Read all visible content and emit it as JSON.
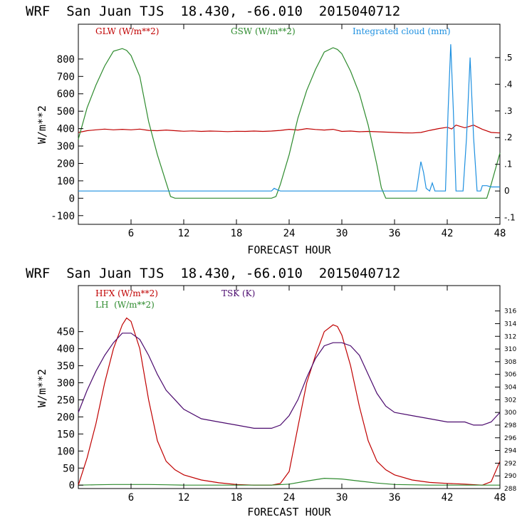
{
  "chart_data": [
    {
      "type": "line",
      "header": "WRF  San Juan TJS  18.430, -66.010  2015040712",
      "xlabel": "FORECAST HOUR",
      "ylabel": "W/m**2",
      "xlim": [
        0,
        48
      ],
      "ylim": [
        -150,
        1000
      ],
      "y2lim": [
        -0.125,
        0.625
      ],
      "x_ticks": [
        6,
        12,
        18,
        24,
        30,
        36,
        42,
        48
      ],
      "x_tick_labels": [
        "6",
        "12",
        "18",
        "24",
        "30",
        "36",
        "42",
        "48"
      ],
      "y_ticks": [
        -100,
        0,
        100,
        200,
        300,
        400,
        500,
        600,
        700,
        800
      ],
      "y_tick_labels": [
        "-100",
        "0",
        "100",
        "200",
        "300",
        "400",
        "500",
        "600",
        "700",
        "800"
      ],
      "y2_ticks": [
        -0.1,
        0,
        0.1,
        0.2,
        0.3,
        0.4,
        0.5
      ],
      "y2_tick_labels": [
        "-.1",
        "0",
        ".1",
        ".2",
        ".3",
        ".4",
        ".5"
      ],
      "series": [
        {
          "name": "GLW (W/m**2)",
          "color": "#c00000",
          "axis": "left",
          "x": [
            0,
            1,
            2,
            3,
            4,
            5,
            6,
            7,
            8,
            9,
            10,
            11,
            12,
            13,
            14,
            15,
            16,
            17,
            18,
            19,
            20,
            21,
            22,
            23,
            24,
            25,
            26,
            27,
            28,
            29,
            30,
            31,
            32,
            33,
            34,
            35,
            36,
            37,
            38,
            39,
            40,
            41,
            42,
            42.5,
            43,
            44,
            45,
            46,
            47,
            48
          ],
          "y": [
            378,
            388,
            393,
            397,
            393,
            396,
            393,
            397,
            390,
            388,
            392,
            388,
            385,
            387,
            384,
            386,
            385,
            383,
            385,
            384,
            386,
            384,
            386,
            390,
            396,
            392,
            400,
            395,
            392,
            396,
            384,
            386,
            382,
            384,
            382,
            380,
            378,
            376,
            375,
            378,
            390,
            400,
            408,
            398,
            420,
            405,
            420,
            396,
            378,
            375
          ]
        },
        {
          "name": "GSW (W/m**2)",
          "color": "#2e8b2e",
          "axis": "left",
          "x": [
            0,
            0.5,
            1,
            2,
            3,
            4,
            5,
            5.5,
            6,
            7,
            8,
            9,
            10,
            10.5,
            11,
            12,
            18,
            22,
            22.5,
            23,
            24,
            25,
            26,
            27,
            28,
            29,
            29.5,
            30,
            31,
            32,
            33,
            34,
            34.5,
            35,
            36,
            42,
            46.5,
            47,
            48
          ],
          "y": [
            340,
            430,
            520,
            650,
            760,
            845,
            860,
            850,
            820,
            700,
            440,
            250,
            90,
            10,
            0,
            0,
            0,
            0,
            10,
            80,
            250,
            460,
            620,
            740,
            840,
            865,
            855,
            830,
            730,
            600,
            420,
            190,
            60,
            0,
            0,
            0,
            0,
            80,
            260
          ]
        },
        {
          "name": "Integrated cloud (mm)",
          "color": "#1e90e0",
          "axis": "right",
          "x": [
            0,
            22,
            22.3,
            22.6,
            23,
            38.5,
            39,
            39.3,
            39.6,
            40,
            40.3,
            40.6,
            41,
            41.8,
            42.1,
            42.4,
            42.7,
            43,
            43.3,
            43.8,
            44.2,
            44.6,
            45,
            45.4,
            45.8,
            46,
            46.5,
            47,
            48
          ],
          "y": [
            0,
            0,
            0.01,
            0.005,
            0,
            0,
            0.11,
            0.07,
            0.01,
            0,
            0.03,
            0,
            0,
            0,
            0.3,
            0.55,
            0.3,
            0,
            0,
            0,
            0.2,
            0.5,
            0.2,
            0,
            0,
            0.02,
            0.02,
            0.015,
            0.015
          ]
        }
      ],
      "legend": [
        "GLW (W/m**2)",
        "GSW (W/m**2)",
        "Integrated cloud (mm)"
      ]
    },
    {
      "type": "line",
      "header": "WRF  San Juan TJS  18.430, -66.010  2015040712",
      "xlabel": "FORECAST HOUR",
      "ylabel": "W/m**2",
      "xlim": [
        0,
        48
      ],
      "ylim": [
        -10,
        585
      ],
      "y2lim": [
        288,
        320
      ],
      "x_ticks": [
        6,
        12,
        18,
        24,
        30,
        36,
        42,
        48
      ],
      "x_tick_labels": [
        "6",
        "12",
        "18",
        "24",
        "30",
        "36",
        "42",
        "48"
      ],
      "y_ticks": [
        0,
        50,
        100,
        150,
        200,
        250,
        300,
        350,
        400,
        450
      ],
      "y_tick_labels": [
        "0",
        "50",
        "100",
        "150",
        "200",
        "250",
        "300",
        "350",
        "400",
        "450"
      ],
      "y2_ticks": [
        288,
        290,
        292,
        294,
        296,
        298,
        300,
        302,
        304,
        306,
        308,
        310,
        312,
        314,
        316
      ],
      "y2_tick_labels": [
        "288",
        "290",
        "292",
        "294",
        "296",
        "298",
        "300",
        "302",
        "304",
        "306",
        "308",
        "310",
        "312",
        "314",
        "316"
      ],
      "series": [
        {
          "name": "HFX (W/m**2)",
          "color": "#c00000",
          "axis": "left",
          "x": [
            0,
            1,
            2,
            3,
            4,
            5,
            5.5,
            6,
            7,
            8,
            9,
            10,
            11,
            12,
            14,
            16,
            18,
            20,
            22,
            23,
            24,
            25,
            26,
            27,
            28,
            29,
            29.5,
            30,
            31,
            32,
            33,
            34,
            35,
            36,
            38,
            40,
            42,
            44,
            46,
            47,
            48
          ],
          "y": [
            0,
            80,
            180,
            300,
            400,
            470,
            490,
            480,
            400,
            250,
            130,
            70,
            45,
            30,
            15,
            7,
            2,
            0,
            0,
            5,
            40,
            170,
            300,
            380,
            450,
            470,
            465,
            440,
            350,
            230,
            130,
            70,
            45,
            30,
            15,
            8,
            5,
            3,
            0,
            10,
            70
          ]
        },
        {
          "name": "LH (W/m**2)",
          "color": "#2e8b2e",
          "axis": "left",
          "x": [
            0,
            2,
            4,
            6,
            8,
            10,
            12,
            18,
            22,
            24,
            26,
            28,
            30,
            32,
            34,
            36,
            40,
            44,
            48
          ],
          "y": [
            0,
            1,
            2,
            2,
            2,
            1,
            0,
            0,
            0,
            3,
            12,
            20,
            18,
            12,
            6,
            2,
            0,
            0,
            0
          ]
        },
        {
          "name": "TSK (K)",
          "color": "#4b0a6e",
          "axis": "right",
          "x": [
            0,
            1,
            2,
            3,
            4,
            5,
            6,
            7,
            8,
            9,
            10,
            11,
            12,
            14,
            16,
            18,
            20,
            22,
            23,
            24,
            25,
            26,
            27,
            28,
            29,
            30,
            31,
            32,
            33,
            34,
            35,
            36,
            38,
            40,
            42,
            44,
            45,
            46,
            47,
            48
          ],
          "y": [
            300,
            303.5,
            306.5,
            309,
            311,
            312.5,
            312.5,
            311.5,
            309,
            306,
            303.5,
            302,
            300.5,
            299,
            298.5,
            298,
            297.5,
            297.5,
            298,
            299.5,
            302,
            305.5,
            308.5,
            310.5,
            311,
            311,
            310.5,
            309,
            306,
            303,
            301,
            300,
            299.5,
            299,
            298.5,
            298.5,
            298,
            298,
            298.5,
            300
          ]
        }
      ],
      "legend": [
        "HFX (W/m**2)",
        "LH  (W/m**2)",
        "TSK (K)"
      ]
    }
  ]
}
